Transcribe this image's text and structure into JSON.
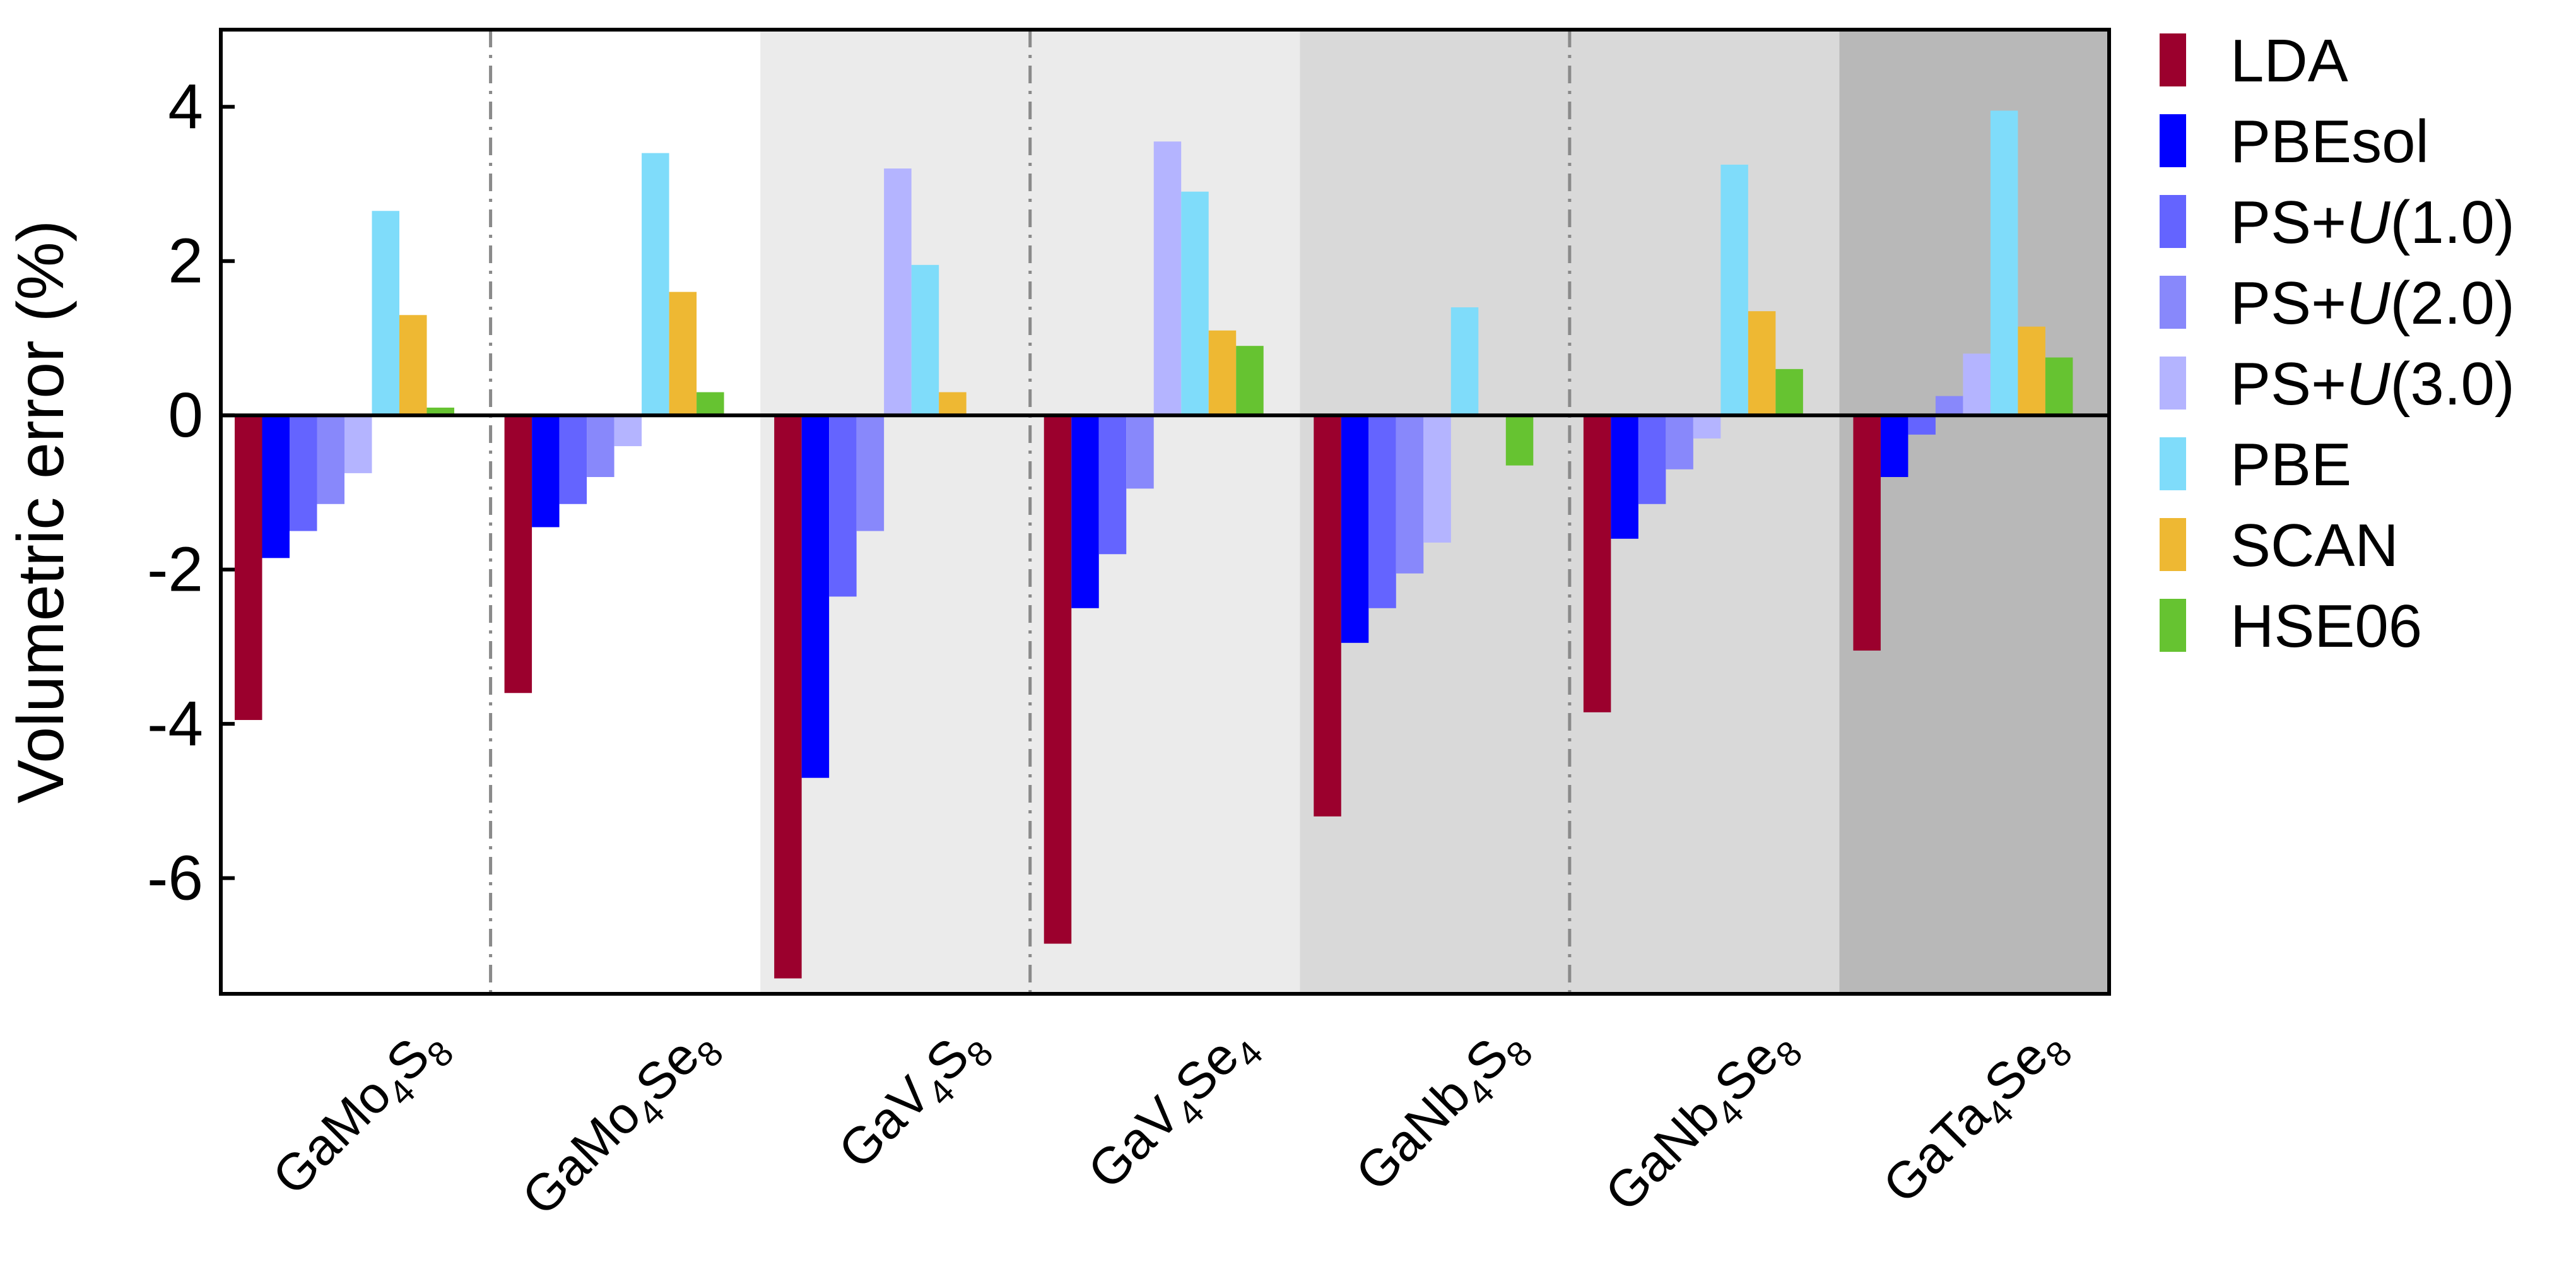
{
  "chart_data": {
    "type": "bar",
    "title": "",
    "ylabel": "Volumetric error (%)",
    "xlabel": "",
    "ylim": [
      -7.5,
      5
    ],
    "yticks": [
      4,
      2,
      0,
      -2,
      -4,
      -6
    ],
    "grid": false,
    "legend_position": "right",
    "categories": [
      {
        "label": "GaMo4S8",
        "parts": [
          {
            "text": "GaMo",
            "sub": false
          },
          {
            "text": "4",
            "sub": true
          },
          {
            "text": "S",
            "sub": false
          },
          {
            "text": "8",
            "sub": true
          }
        ]
      },
      {
        "label": "GaMo4Se8",
        "parts": [
          {
            "text": "GaMo",
            "sub": false
          },
          {
            "text": "4",
            "sub": true
          },
          {
            "text": "Se",
            "sub": false
          },
          {
            "text": "8",
            "sub": true
          }
        ]
      },
      {
        "label": "GaV4S8",
        "parts": [
          {
            "text": "GaV",
            "sub": false
          },
          {
            "text": "4",
            "sub": true
          },
          {
            "text": "S",
            "sub": false
          },
          {
            "text": "8",
            "sub": true
          }
        ]
      },
      {
        "label": "GaV4Se4",
        "parts": [
          {
            "text": "GaV",
            "sub": false
          },
          {
            "text": "4",
            "sub": true
          },
          {
            "text": "Se",
            "sub": false
          },
          {
            "text": "4",
            "sub": true
          }
        ]
      },
      {
        "label": "GaNb4S8",
        "parts": [
          {
            "text": "GaNb",
            "sub": false
          },
          {
            "text": "4",
            "sub": true
          },
          {
            "text": "S",
            "sub": false
          },
          {
            "text": "8",
            "sub": true
          }
        ]
      },
      {
        "label": "GaNb4Se8",
        "parts": [
          {
            "text": "GaNb",
            "sub": false
          },
          {
            "text": "4",
            "sub": true
          },
          {
            "text": "Se",
            "sub": false
          },
          {
            "text": "8",
            "sub": true
          }
        ]
      },
      {
        "label": "GaTa4Se8",
        "parts": [
          {
            "text": "GaTa",
            "sub": false
          },
          {
            "text": "4",
            "sub": true
          },
          {
            "text": "Se",
            "sub": false
          },
          {
            "text": "8",
            "sub": true
          }
        ]
      }
    ],
    "category_backgrounds": [
      "#ffffff",
      "#ffffff",
      "#ebebeb",
      "#ebebeb",
      "#d9d9d9",
      "#d9d9d9",
      "#b8b8b8"
    ],
    "series": [
      {
        "name": "LDA",
        "color": "#9b002d",
        "values": [
          -3.95,
          -3.6,
          -7.3,
          -6.85,
          -5.2,
          -3.85,
          -3.05
        ]
      },
      {
        "name": "PBEsol",
        "color": "#0000ff",
        "values": [
          -1.85,
          -1.45,
          -4.7,
          -2.5,
          -2.95,
          -1.6,
          -0.8
        ]
      },
      {
        "name": "PS+U(1.0)",
        "name_parts": [
          {
            "text": "PS+",
            "italic": false
          },
          {
            "text": "U",
            "italic": true
          },
          {
            "text": "(1.0)",
            "italic": false
          }
        ],
        "color": "#6464ff",
        "values": [
          -1.5,
          -1.15,
          -2.35,
          -1.8,
          -2.5,
          -1.15,
          -0.25
        ]
      },
      {
        "name": "PS+U(2.0)",
        "name_parts": [
          {
            "text": "PS+",
            "italic": false
          },
          {
            "text": "U",
            "italic": true
          },
          {
            "text": "(2.0)",
            "italic": false
          }
        ],
        "color": "#8888fb",
        "values": [
          -1.15,
          -0.8,
          -1.5,
          -0.95,
          -2.05,
          -0.7,
          0.25
        ]
      },
      {
        "name": "PS+U(3.0)",
        "name_parts": [
          {
            "text": "PS+",
            "italic": false
          },
          {
            "text": "U",
            "italic": true
          },
          {
            "text": "(3.0)",
            "italic": false
          }
        ],
        "color": "#b4b4ff",
        "values": [
          -0.75,
          -0.4,
          3.2,
          3.55,
          -1.65,
          -0.3,
          0.8
        ]
      },
      {
        "name": "PBE",
        "color": "#7fdcfa",
        "values": [
          2.65,
          3.4,
          1.95,
          2.9,
          1.4,
          3.25,
          3.95
        ]
      },
      {
        "name": "SCAN",
        "color": "#eeb833",
        "values": [
          1.3,
          1.6,
          0.3,
          1.1,
          0.0,
          1.35,
          1.15
        ]
      },
      {
        "name": "HSE06",
        "color": "#66c331",
        "values": [
          0.1,
          0.3,
          0.0,
          0.9,
          -0.65,
          0.6,
          0.75
        ]
      }
    ]
  }
}
